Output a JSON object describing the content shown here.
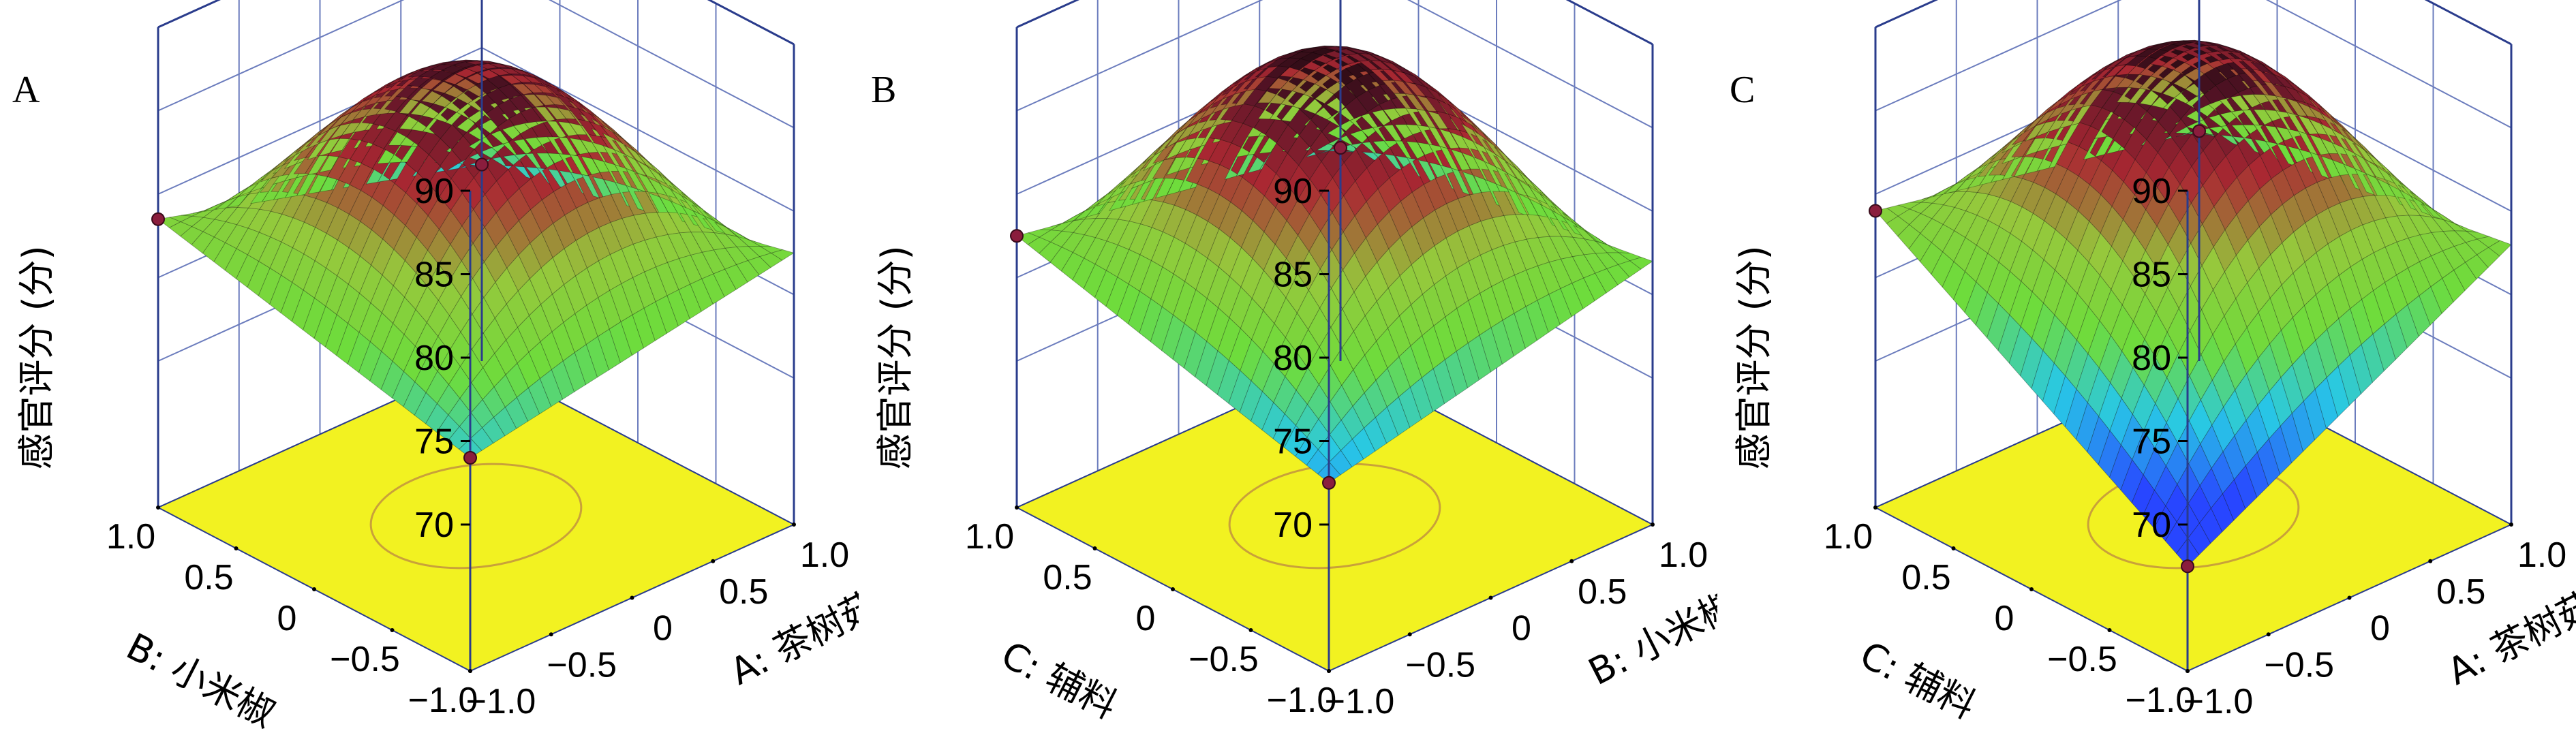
{
  "colors": {
    "floor": "#f2f221",
    "box": "#2a3c8c",
    "grid": "#6b7cbd",
    "design_point": "#8a1d3d",
    "surface_low": "#2e5bff",
    "surface_mid": "#7fe034",
    "surface_high": "#2a0a10"
  },
  "chart_data": [
    {
      "type": "surface",
      "panel_label": "A",
      "zlabel": "感官评分 (分)",
      "zlim": [
        70,
        90
      ],
      "zticks": [
        "70",
        "75",
        "80",
        "85",
        "90"
      ],
      "x_axis": {
        "label": "A: 茶树菇",
        "ticks": [
          "−1.0",
          "−0.5",
          "0",
          "0.5",
          "1.0"
        ]
      },
      "y_axis": {
        "label": "B: 小米椒",
        "ticks": [
          "−1.0",
          "−0.5",
          "0",
          "0.5",
          "1.0"
        ]
      },
      "corners": {
        "xlow_ylow": 74.0,
        "xhigh_ylow": 77.5,
        "xlow_yhigh": 78.5,
        "xhigh_yhigh": 73.0
      },
      "peak": 87.8,
      "design_points": [
        {
          "x": -1,
          "y": 1,
          "z": 78.5
        },
        {
          "x": -1,
          "y": -1,
          "z": 74.0
        },
        {
          "x": 1,
          "y": 1,
          "z": 73.0
        }
      ]
    },
    {
      "type": "surface",
      "panel_label": "B",
      "zlabel": "感官评分 (分)",
      "zlim": [
        70,
        90
      ],
      "zticks": [
        "70",
        "75",
        "80",
        "85",
        "90"
      ],
      "x_axis": {
        "label": "B: 小米椒",
        "ticks": [
          "−1.0",
          "−0.5",
          "0",
          "0.5",
          "1.0"
        ]
      },
      "y_axis": {
        "label": "C: 辅料",
        "ticks": [
          "−1.0",
          "−0.5",
          "0",
          "0.5",
          "1.0"
        ]
      },
      "corners": {
        "xlow_ylow": 72.5,
        "xhigh_ylow": 77.0,
        "xlow_yhigh": 77.5,
        "xhigh_yhigh": 74.0
      },
      "peak": 88.5,
      "design_points": [
        {
          "x": -1,
          "y": 1,
          "z": 77.5
        },
        {
          "x": -1,
          "y": -1,
          "z": 72.5
        },
        {
          "x": 1,
          "y": 1,
          "z": 74.0
        }
      ]
    },
    {
      "type": "surface",
      "panel_label": "C",
      "zlabel": "感官评分 (分)",
      "zlim": [
        70,
        90
      ],
      "zticks": [
        "70",
        "75",
        "80",
        "85",
        "90"
      ],
      "x_axis": {
        "label": "A: 茶树菇",
        "ticks": [
          "−1.0",
          "−0.5",
          "0",
          "0.5",
          "1.0"
        ]
      },
      "y_axis": {
        "label": "C: 辅料",
        "ticks": [
          "−1.0",
          "−0.5",
          "0",
          "0.5",
          "1.0"
        ]
      },
      "corners": {
        "xlow_ylow": 67.5,
        "xhigh_ylow": 78.0,
        "xlow_yhigh": 79.0,
        "xhigh_yhigh": 75.0
      },
      "peak": 88.3,
      "design_points": [
        {
          "x": -1,
          "y": 1,
          "z": 79.0
        },
        {
          "x": -1,
          "y": -1,
          "z": 67.5
        },
        {
          "x": 1,
          "y": 1,
          "z": 75.0
        },
        {
          "x": 0.9,
          "y": 0.9,
          "z": 89.6
        }
      ]
    }
  ]
}
